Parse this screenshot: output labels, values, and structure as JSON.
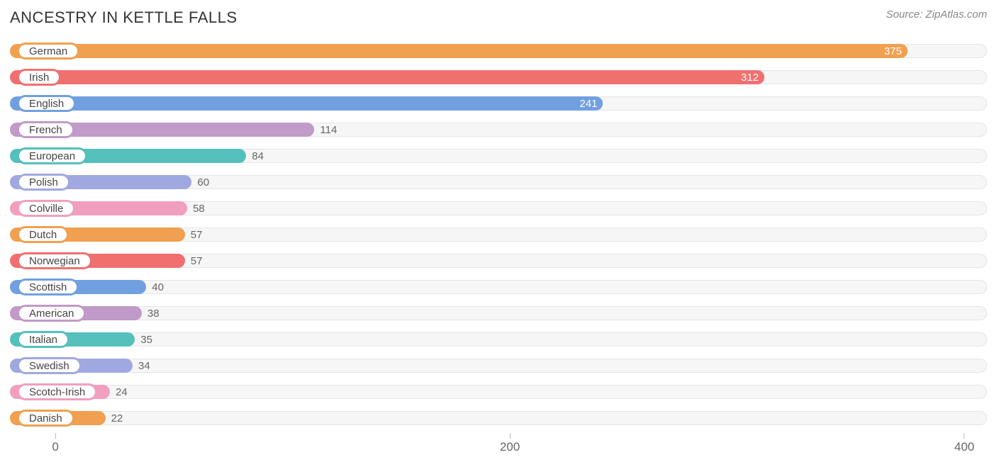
{
  "title": "ANCESTRY IN KETTLE FALLS",
  "source": "Source: ZipAtlas.com",
  "chart": {
    "type": "bar-horizontal",
    "domain_min": -20,
    "domain_max": 410,
    "track_bg": "#f6f6f6",
    "track_border": "#e5e5e5",
    "ticks": [
      0,
      200,
      400
    ],
    "palette": [
      "#f0a050",
      "#f07070",
      "#70a0e0",
      "#c09ac8",
      "#55c0bc",
      "#a0a8e0",
      "#f29ebf"
    ],
    "inside_threshold": 200,
    "series": [
      {
        "label": "German",
        "value": 375
      },
      {
        "label": "Irish",
        "value": 312
      },
      {
        "label": "English",
        "value": 241
      },
      {
        "label": "French",
        "value": 114
      },
      {
        "label": "European",
        "value": 84
      },
      {
        "label": "Polish",
        "value": 60
      },
      {
        "label": "Colville",
        "value": 58
      },
      {
        "label": "Dutch",
        "value": 57
      },
      {
        "label": "Norwegian",
        "value": 57
      },
      {
        "label": "Scottish",
        "value": 40
      },
      {
        "label": "American",
        "value": 38
      },
      {
        "label": "Italian",
        "value": 35
      },
      {
        "label": "Swedish",
        "value": 34
      },
      {
        "label": "Scotch-Irish",
        "value": 24
      },
      {
        "label": "Danish",
        "value": 22
      }
    ]
  }
}
